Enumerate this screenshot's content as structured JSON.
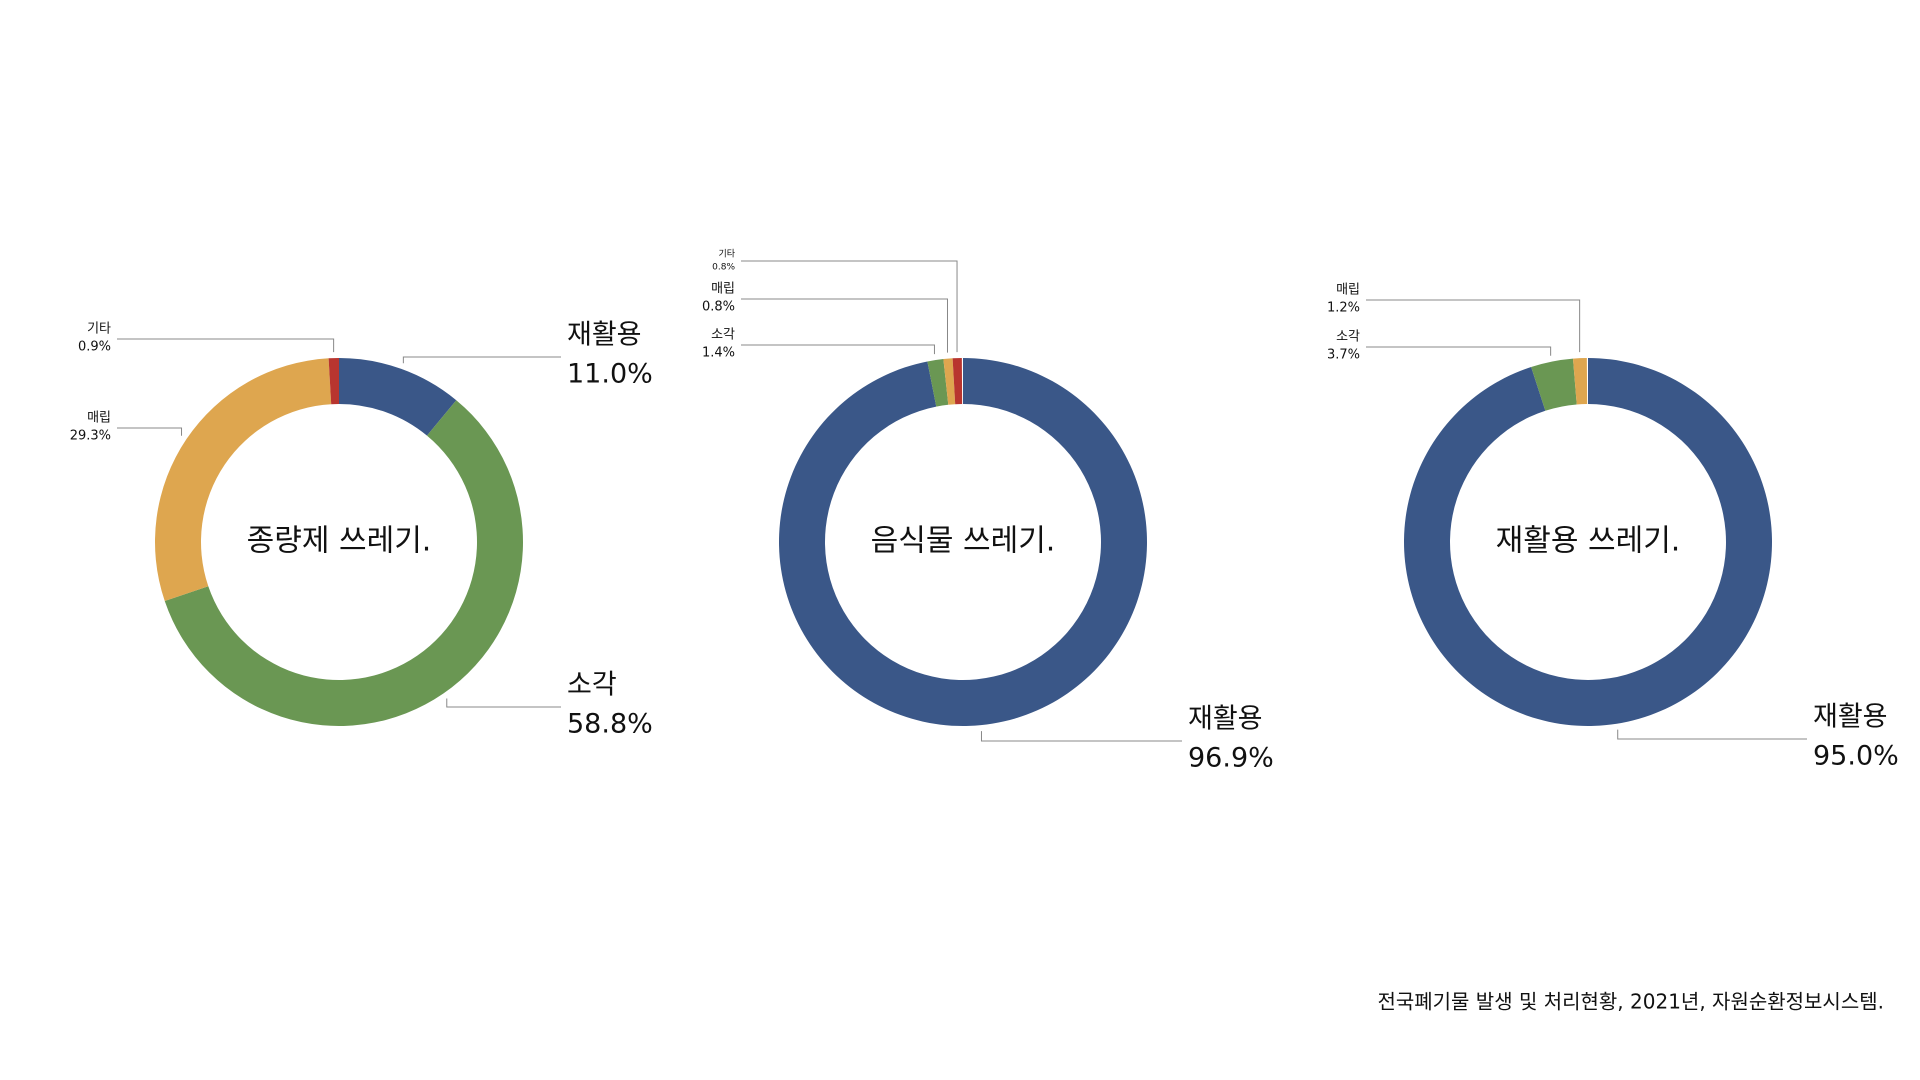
{
  "chart_data": [
    {
      "type": "donut",
      "title": "종량제 쓰레기.",
      "categories": [
        "재활용",
        "소각",
        "매립",
        "기타"
      ],
      "values": [
        11.0,
        58.8,
        29.3,
        0.9
      ],
      "value_labels": [
        "11.0%",
        "58.8%",
        "29.3%",
        "0.9%"
      ],
      "colors": [
        "#3a5788",
        "#6a9753",
        "#dea64f",
        "#b8352f"
      ]
    },
    {
      "type": "donut",
      "title": "음식물 쓰레기.",
      "categories": [
        "재활용",
        "소각",
        "매립",
        "기타"
      ],
      "values": [
        96.9,
        1.4,
        0.8,
        0.8
      ],
      "value_labels": [
        "96.9%",
        "1.4%",
        "0.8%",
        "0.8%"
      ],
      "colors": [
        "#3a5788",
        "#6a9753",
        "#dea64f",
        "#b8352f"
      ]
    },
    {
      "type": "donut",
      "title": "재활용 쓰레기.",
      "categories": [
        "재활용",
        "소각",
        "매립"
      ],
      "values": [
        95.0,
        3.7,
        1.2
      ],
      "value_labels": [
        "95.0%",
        "3.7%",
        "1.2%"
      ],
      "colors": [
        "#3a5788",
        "#6a9753",
        "#dea64f"
      ]
    }
  ],
  "source": "전국폐기물 발생 및 처리현황, 2021년, 자원순환정보시스템."
}
